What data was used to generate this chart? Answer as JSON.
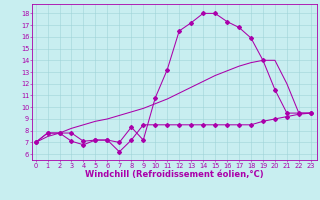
{
  "title": "",
  "xlabel": "Windchill (Refroidissement éolien,°C)",
  "bg_color": "#c8eef0",
  "line_color": "#aa00aa",
  "x_ticks": [
    0,
    1,
    2,
    3,
    4,
    5,
    6,
    7,
    8,
    9,
    10,
    11,
    12,
    13,
    14,
    15,
    16,
    17,
    18,
    19,
    20,
    21,
    22,
    23
  ],
  "y_ticks": [
    6,
    7,
    8,
    9,
    10,
    11,
    12,
    13,
    14,
    15,
    16,
    17,
    18
  ],
  "ylim": [
    5.5,
    18.8
  ],
  "xlim": [
    -0.3,
    23.5
  ],
  "line1_x": [
    0,
    1,
    2,
    3,
    4,
    5,
    6,
    7,
    8,
    9,
    10,
    11,
    12,
    13,
    14,
    15,
    16,
    17,
    18,
    19,
    20,
    21,
    22,
    23
  ],
  "line1_y": [
    7.0,
    7.8,
    7.8,
    7.8,
    7.1,
    7.2,
    7.2,
    7.0,
    8.3,
    7.2,
    10.8,
    13.2,
    16.5,
    17.2,
    18.0,
    18.0,
    17.3,
    16.8,
    15.9,
    14.0,
    11.5,
    9.5,
    9.5,
    9.5
  ],
  "line2_x": [
    0,
    1,
    2,
    3,
    4,
    5,
    6,
    7,
    8,
    9,
    10,
    11,
    12,
    13,
    14,
    15,
    16,
    17,
    18,
    19,
    20,
    21,
    22,
    23
  ],
  "line2_y": [
    7.0,
    7.5,
    7.8,
    8.2,
    8.5,
    8.8,
    9.0,
    9.3,
    9.6,
    9.9,
    10.3,
    10.7,
    11.2,
    11.7,
    12.2,
    12.7,
    13.1,
    13.5,
    13.8,
    14.0,
    14.0,
    12.0,
    9.5,
    9.5
  ],
  "line3_x": [
    0,
    1,
    2,
    3,
    4,
    5,
    6,
    7,
    8,
    9,
    10,
    11,
    12,
    13,
    14,
    15,
    16,
    17,
    18,
    19,
    20,
    21,
    22,
    23
  ],
  "line3_y": [
    7.0,
    7.8,
    7.8,
    7.1,
    6.8,
    7.2,
    7.2,
    6.2,
    7.2,
    8.5,
    8.5,
    8.5,
    8.5,
    8.5,
    8.5,
    8.5,
    8.5,
    8.5,
    8.5,
    8.8,
    9.0,
    9.2,
    9.4,
    9.5
  ],
  "grid_color": "#9fd4d8",
  "tick_fontsize": 4.8,
  "xlabel_fontsize": 6.0,
  "lw": 0.75,
  "marker_size": 2.0
}
